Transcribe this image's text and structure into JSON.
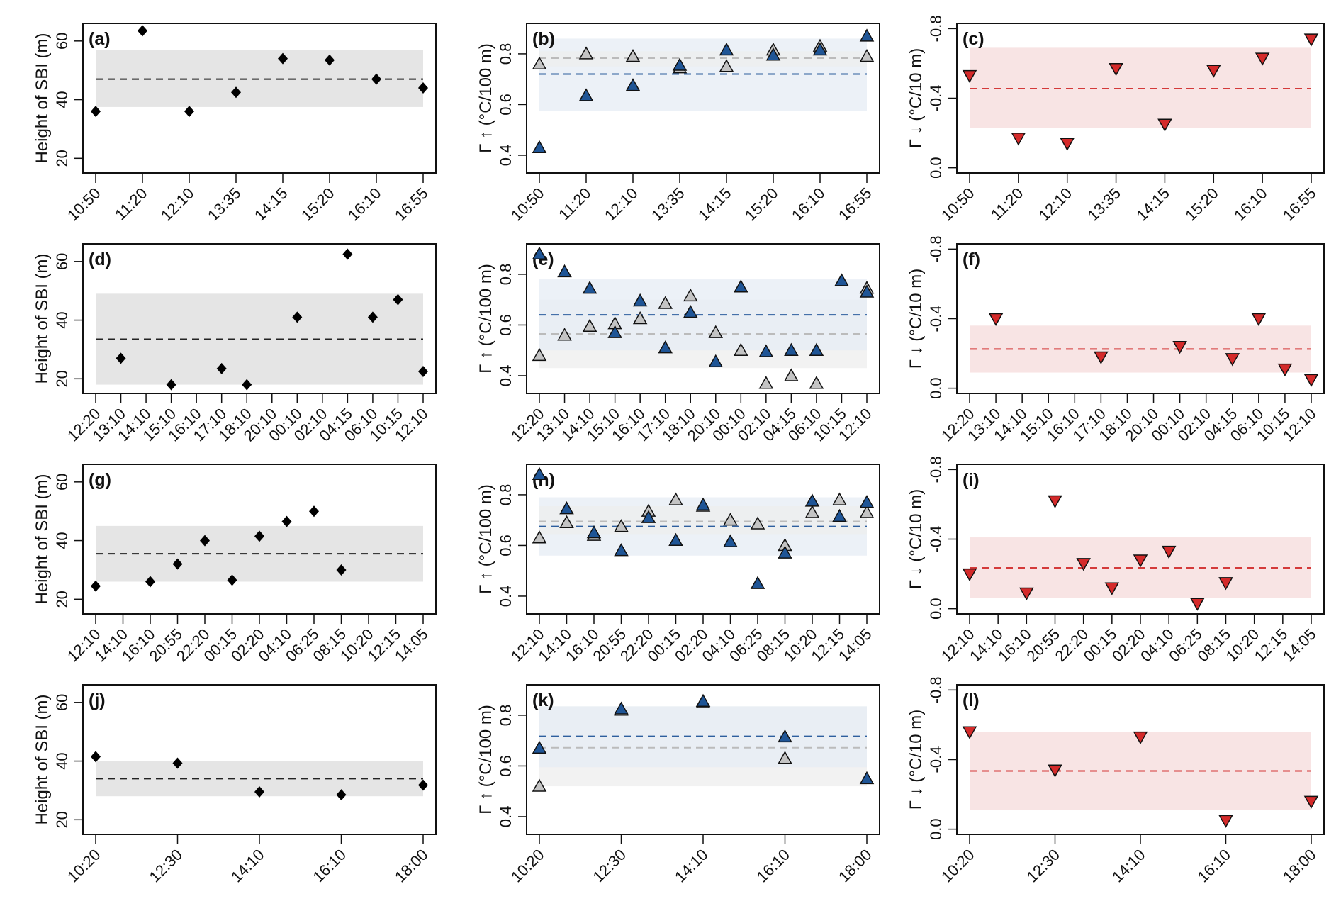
{
  "figure": {
    "colors": {
      "sbi_marker": "#000000",
      "sbi_band": "#e5e5e5",
      "sbi_mean": "#222222",
      "up_blue_marker": "#1f5596",
      "up_blue_band": "#e6ecf4",
      "up_blue_mean": "#2e5f9e",
      "up_gray_marker": "#c4c4c4",
      "up_gray_band": "#ededed",
      "up_gray_mean": "#bbbbbb",
      "down_marker": "#d42a2a",
      "down_band": "#f8e4e4",
      "down_mean": "#d43a3a"
    }
  },
  "chart_data": [
    {
      "id": "a",
      "label": "(a)",
      "type": "scatter",
      "kind": "sbi",
      "ylabel": "Height of SBI (m)",
      "yticks": [
        20,
        40,
        60
      ],
      "ylim": [
        15,
        66
      ],
      "categories": [
        "10:50",
        "11:20",
        "12:10",
        "13:35",
        "14:15",
        "15:20",
        "16:10",
        "16:55"
      ],
      "series": [
        {
          "name": "SBI height",
          "marker": "diamond",
          "values": [
            36,
            63.5,
            36,
            42.5,
            54,
            53.5,
            47,
            44
          ]
        }
      ],
      "bands": [
        {
          "series": "SBI height",
          "range": [
            37.5,
            57
          ]
        }
      ],
      "means": [
        {
          "series": "SBI height",
          "value": 47
        }
      ]
    },
    {
      "id": "b",
      "label": "(b)",
      "type": "scatter",
      "kind": "up",
      "ylabel": "Γ ↑ (°C/100 m)",
      "yticks": [
        0.4,
        0.6,
        0.8
      ],
      "ylim": [
        0.33,
        0.92
      ],
      "categories": [
        "10:50",
        "11:20",
        "12:10",
        "13:35",
        "14:15",
        "15:20",
        "16:10",
        "16:55"
      ],
      "series": [
        {
          "name": "gray",
          "marker": "triangle-up",
          "values": [
            0.76,
            0.8,
            0.79,
            0.745,
            0.75,
            0.815,
            0.83,
            0.79
          ]
        },
        {
          "name": "blue",
          "marker": "triangle-up",
          "values": [
            0.43,
            0.635,
            0.675,
            0.755,
            0.815,
            0.795,
            0.815,
            0.87
          ]
        }
      ],
      "bands": [
        {
          "series": "blue",
          "range": [
            0.575,
            0.86
          ]
        },
        {
          "series": "gray",
          "range": [
            0.75,
            0.81
          ]
        }
      ],
      "means": [
        {
          "series": "gray",
          "value": 0.783
        },
        {
          "series": "blue",
          "value": 0.72
        }
      ]
    },
    {
      "id": "c",
      "label": "(c)",
      "type": "scatter",
      "kind": "down",
      "ylabel": "Γ ↓ (°C/10 m)",
      "yticks": [
        0.0,
        -0.4,
        -0.8
      ],
      "ytick_labels": [
        "0.0",
        "-0.4",
        "-0.8"
      ],
      "ylim": [
        0.03,
        -0.83
      ],
      "categories": [
        "10:50",
        "11:20",
        "12:10",
        "13:35",
        "14:15",
        "15:20",
        "16:10",
        "16:55"
      ],
      "series": [
        {
          "name": "red",
          "marker": "triangle-down",
          "values": [
            -0.53,
            -0.17,
            -0.14,
            -0.57,
            -0.25,
            -0.56,
            -0.63,
            -0.74
          ]
        }
      ],
      "bands": [
        {
          "series": "red",
          "range": [
            -0.23,
            -0.69
          ]
        }
      ],
      "means": [
        {
          "series": "red",
          "value": -0.455
        }
      ]
    },
    {
      "id": "d",
      "label": "(d)",
      "type": "scatter",
      "kind": "sbi",
      "ylabel": "Height of SBI (m)",
      "yticks": [
        20,
        40,
        60
      ],
      "ylim": [
        15,
        66
      ],
      "categories": [
        "12:20",
        "13:10",
        "14:10",
        "15:10",
        "16:10",
        "17:10",
        "18:10",
        "20:10",
        "00:10",
        "02:10",
        "04:15",
        "06:10",
        "10:15",
        "12:10"
      ],
      "series": [
        {
          "name": "SBI height",
          "marker": "diamond",
          "values": [
            null,
            27,
            null,
            18,
            null,
            23.5,
            18,
            null,
            41,
            null,
            62.5,
            41,
            47,
            22.5
          ]
        }
      ],
      "bands": [
        {
          "series": "SBI height",
          "range": [
            18,
            49
          ]
        }
      ],
      "means": [
        {
          "series": "SBI height",
          "value": 33.5
        }
      ]
    },
    {
      "id": "e",
      "label": "(e)",
      "type": "scatter",
      "kind": "up",
      "ylabel": "Γ ↑ (°C/100 m)",
      "yticks": [
        0.4,
        0.6,
        0.8
      ],
      "ylim": [
        0.33,
        0.92
      ],
      "categories": [
        "12:20",
        "13:10",
        "14:10",
        "15:10",
        "16:10",
        "17:10",
        "18:10",
        "20:10",
        "00:10",
        "02:10",
        "04:15",
        "06:10",
        "10:15",
        "12:10"
      ],
      "series": [
        {
          "name": "gray",
          "marker": "triangle-up",
          "values": [
            0.48,
            0.56,
            0.595,
            0.605,
            0.625,
            0.685,
            0.715,
            0.57,
            0.5,
            0.37,
            0.4,
            0.37,
            null,
            0.745
          ]
        },
        {
          "name": "blue",
          "marker": "triangle-up",
          "values": [
            0.88,
            0.81,
            0.745,
            0.57,
            0.695,
            0.51,
            0.65,
            0.455,
            0.75,
            0.495,
            0.5,
            0.5,
            0.775,
            0.73
          ]
        }
      ],
      "bands": [
        {
          "series": "gray",
          "range": [
            0.43,
            0.7
          ]
        },
        {
          "series": "blue",
          "range": [
            0.5,
            0.78
          ]
        }
      ],
      "means": [
        {
          "series": "blue",
          "value": 0.64
        },
        {
          "series": "gray",
          "value": 0.565
        }
      ]
    },
    {
      "id": "f",
      "label": "(f)",
      "type": "scatter",
      "kind": "down",
      "ylabel": "Γ ↓ (°C/10 m)",
      "yticks": [
        0.0,
        -0.4,
        -0.8
      ],
      "ytick_labels": [
        "0.0",
        "-0.4",
        "-0.8"
      ],
      "ylim": [
        0.03,
        -0.83
      ],
      "categories": [
        "12:20",
        "13:10",
        "14:10",
        "15:10",
        "16:10",
        "17:10",
        "18:10",
        "20:10",
        "00:10",
        "02:10",
        "04:15",
        "06:10",
        "10:15",
        "12:10"
      ],
      "series": [
        {
          "name": "red",
          "marker": "triangle-down",
          "values": [
            null,
            -0.4,
            null,
            null,
            null,
            -0.18,
            null,
            null,
            -0.24,
            null,
            -0.17,
            -0.4,
            -0.11,
            -0.05
          ]
        }
      ],
      "bands": [
        {
          "series": "red",
          "range": [
            -0.09,
            -0.36
          ]
        }
      ],
      "means": [
        {
          "series": "red",
          "value": -0.225
        }
      ]
    },
    {
      "id": "g",
      "label": "(g)",
      "type": "scatter",
      "kind": "sbi",
      "ylabel": "Height of SBI (m)",
      "yticks": [
        20,
        40,
        60
      ],
      "ylim": [
        15,
        66
      ],
      "categories": [
        "12:10",
        "14:10",
        "16:10",
        "20:55",
        "22:20",
        "00:15",
        "02:20",
        "04:10",
        "06:25",
        "08:15",
        "10:20",
        "12:15",
        "14:05"
      ],
      "series": [
        {
          "name": "SBI height",
          "marker": "diamond",
          "values": [
            24.5,
            null,
            26,
            32,
            40,
            26.5,
            41.5,
            46.5,
            50,
            30,
            null,
            null,
            null
          ]
        }
      ],
      "bands": [
        {
          "series": "SBI height",
          "range": [
            26,
            45
          ]
        }
      ],
      "means": [
        {
          "series": "SBI height",
          "value": 35.5
        }
      ]
    },
    {
      "id": "h",
      "label": "(h)",
      "type": "scatter",
      "kind": "up",
      "ylabel": "Γ ↑ (°C/100 m)",
      "yticks": [
        0.4,
        0.6,
        0.8
      ],
      "ylim": [
        0.33,
        0.92
      ],
      "categories": [
        "12:10",
        "14:10",
        "16:10",
        "20:55",
        "22:20",
        "00:15",
        "02:20",
        "04:10",
        "06:25",
        "08:15",
        "10:20",
        "12:15",
        "14:05"
      ],
      "series": [
        {
          "name": "gray",
          "marker": "triangle-up",
          "values": [
            0.63,
            0.69,
            0.64,
            0.675,
            0.735,
            0.78,
            0.755,
            0.7,
            0.685,
            0.6,
            0.73,
            0.78,
            0.73
          ]
        },
        {
          "name": "blue",
          "marker": "triangle-up",
          "values": [
            0.88,
            0.745,
            0.65,
            0.58,
            0.71,
            0.62,
            0.76,
            0.615,
            0.45,
            0.57,
            0.775,
            0.715,
            0.77
          ]
        }
      ],
      "bands": [
        {
          "series": "blue",
          "range": [
            0.56,
            0.79
          ]
        },
        {
          "series": "gray",
          "range": [
            0.645,
            0.755
          ]
        }
      ],
      "means": [
        {
          "series": "gray",
          "value": 0.695
        },
        {
          "series": "blue",
          "value": 0.675
        }
      ]
    },
    {
      "id": "i",
      "label": "(i)",
      "type": "scatter",
      "kind": "down",
      "ylabel": "Γ ↓ (°C/10 m)",
      "yticks": [
        0.0,
        -0.4,
        -0.8
      ],
      "ytick_labels": [
        "0.0",
        "-0.4",
        "-0.8"
      ],
      "ylim": [
        0.03,
        -0.83
      ],
      "categories": [
        "12:10",
        "14:10",
        "16:10",
        "20:55",
        "22:20",
        "00:15",
        "02:20",
        "04:10",
        "06:25",
        "08:15",
        "10:20",
        "12:15",
        "14:05"
      ],
      "series": [
        {
          "name": "red",
          "marker": "triangle-down",
          "values": [
            -0.2,
            null,
            -0.09,
            -0.62,
            -0.26,
            -0.12,
            -0.28,
            -0.33,
            -0.03,
            -0.15,
            null,
            null,
            null
          ]
        }
      ],
      "bands": [
        {
          "series": "red",
          "range": [
            -0.06,
            -0.41
          ]
        }
      ],
      "means": [
        {
          "series": "red",
          "value": -0.235
        }
      ]
    },
    {
      "id": "j",
      "label": "(j)",
      "type": "scatter",
      "kind": "sbi",
      "ylabel": "Height of SBI (m)",
      "yticks": [
        20,
        40,
        60
      ],
      "ylim": [
        15,
        66
      ],
      "categories": [
        "10:20",
        "12:30",
        "14:10",
        "16:10",
        "18:00"
      ],
      "series": [
        {
          "name": "SBI height",
          "marker": "diamond",
          "values": [
            41.5,
            39.3,
            29.5,
            28.5,
            31.8
          ]
        }
      ],
      "bands": [
        {
          "series": "SBI height",
          "range": [
            28,
            40
          ]
        }
      ],
      "means": [
        {
          "series": "SBI height",
          "value": 34
        }
      ]
    },
    {
      "id": "k",
      "label": "(k)",
      "type": "scatter",
      "kind": "up",
      "ylabel": "Γ ↑ (°C/100 m)",
      "yticks": [
        0.4,
        0.6,
        0.8
      ],
      "ylim": [
        0.33,
        0.92
      ],
      "categories": [
        "10:20",
        "12:30",
        "14:10",
        "16:10",
        "18:00"
      ],
      "series": [
        {
          "name": "gray",
          "marker": "triangle-up",
          "values": [
            0.52,
            0.82,
            0.85,
            0.63,
            null
          ]
        },
        {
          "name": "blue",
          "marker": "triangle-up",
          "values": [
            0.67,
            0.825,
            0.855,
            0.715,
            0.55
          ]
        }
      ],
      "bands": [
        {
          "series": "gray",
          "range": [
            0.52,
            0.835
          ]
        },
        {
          "series": "blue",
          "range": [
            0.595,
            0.835
          ]
        }
      ],
      "means": [
        {
          "series": "blue",
          "value": 0.717
        },
        {
          "series": "gray",
          "value": 0.672
        }
      ]
    },
    {
      "id": "l",
      "label": "(l)",
      "type": "scatter",
      "kind": "down",
      "ylabel": "Γ ↓ (°C/10 m)",
      "yticks": [
        0.0,
        -0.4,
        -0.8
      ],
      "ytick_labels": [
        "0.0",
        "-0.4",
        "-0.8"
      ],
      "ylim": [
        0.03,
        -0.83
      ],
      "categories": [
        "10:20",
        "12:30",
        "14:10",
        "16:10",
        "18:00"
      ],
      "series": [
        {
          "name": "red",
          "marker": "triangle-down",
          "values": [
            -0.56,
            -0.34,
            -0.53,
            -0.05,
            -0.16
          ]
        }
      ],
      "bands": [
        {
          "series": "red",
          "range": [
            -0.11,
            -0.56
          ]
        }
      ],
      "means": [
        {
          "series": "red",
          "value": -0.335
        }
      ]
    }
  ]
}
